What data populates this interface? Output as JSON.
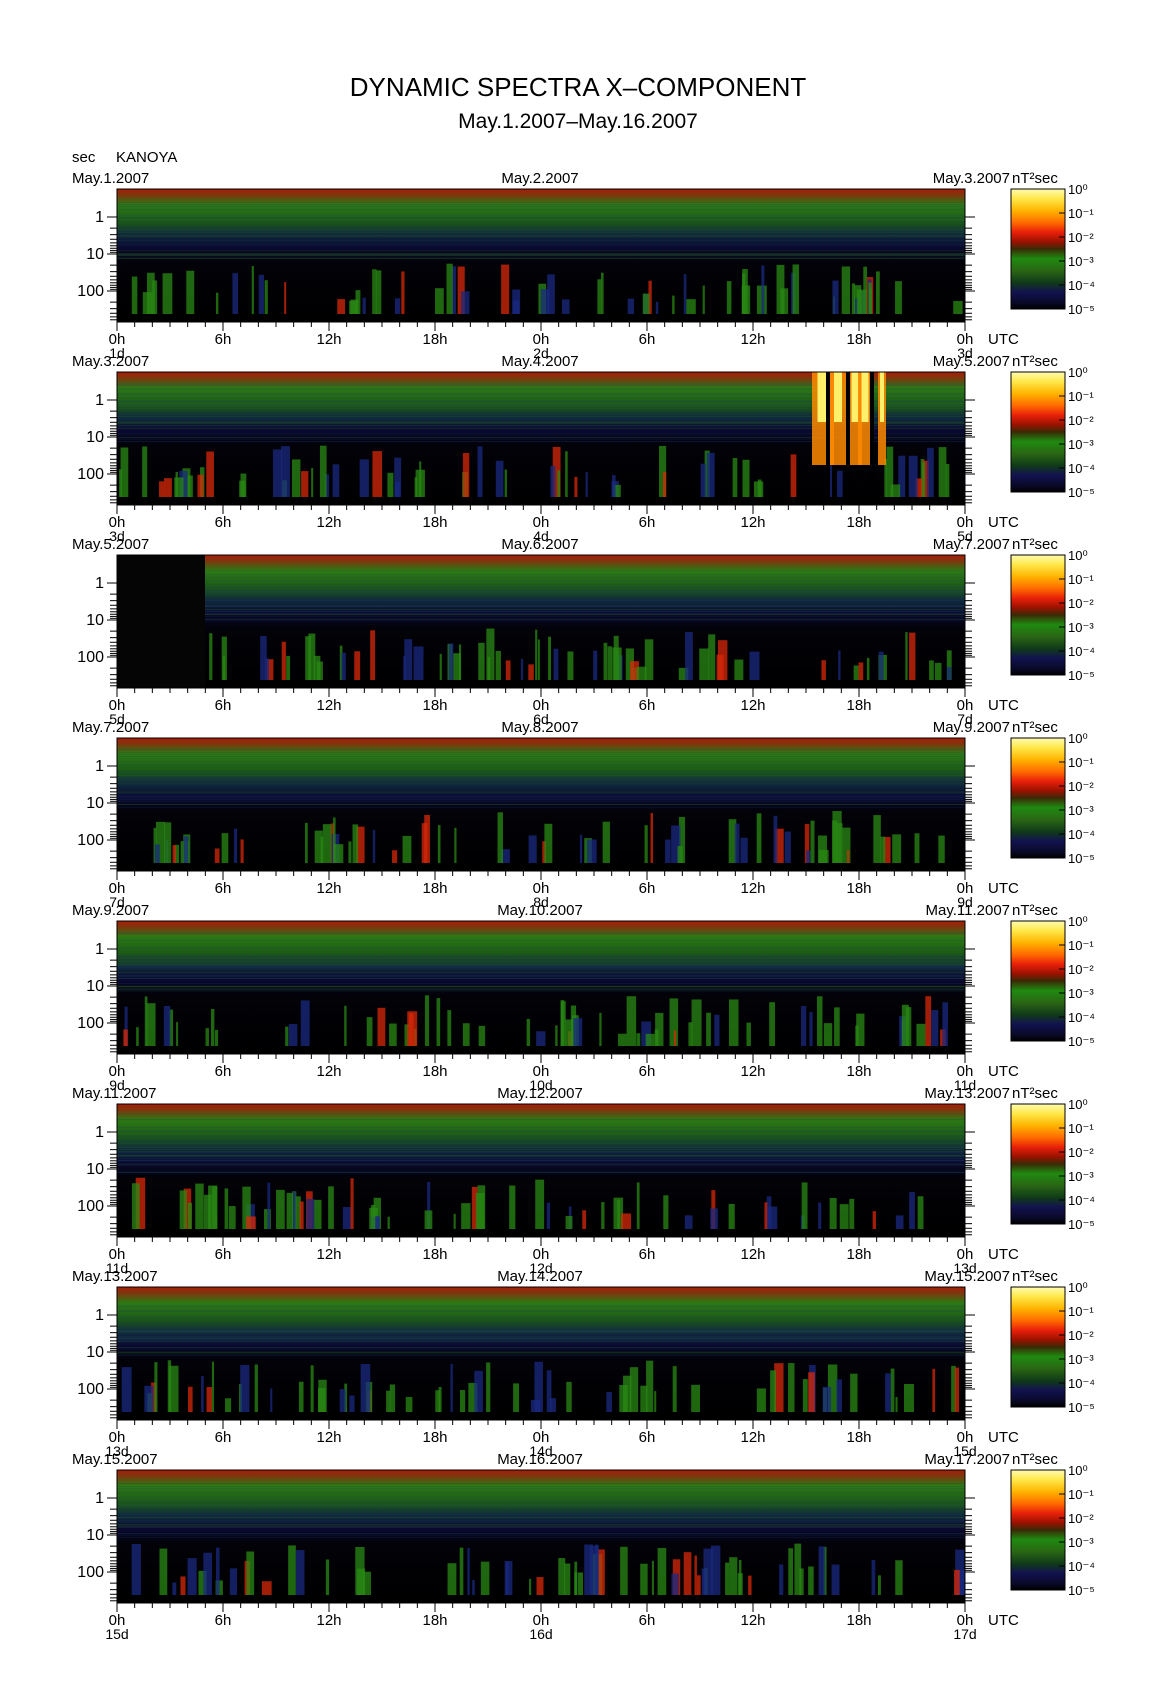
{
  "title": "DYNAMIC SPECTRA X–COMPONENT",
  "subtitle": "May.1.2007–May.16.2007",
  "station": "KANOYA",
  "y_unit": "sec",
  "x_unit": "UTC",
  "colorbar_unit": "nT²sec",
  "chart_data": {
    "type": "heatmap",
    "title": "DYNAMIC SPECTRA X–COMPONENT",
    "subtitle": "May.1.2007–May.16.2007",
    "station": "KANOYA",
    "ylabel": "sec",
    "xlabel": "UTC",
    "y_scale": "log",
    "y_inverted": true,
    "y_tick_labels": [
      "1",
      "10",
      "100"
    ],
    "y_ticks": [
      1,
      10,
      100
    ],
    "x_tick_labels": [
      "0h",
      "6h",
      "12h",
      "18h",
      "0h",
      "6h",
      "12h",
      "18h",
      "0h"
    ],
    "x_ticks_hours": [
      0,
      6,
      12,
      18,
      24,
      30,
      36,
      42,
      48
    ],
    "colorbar": {
      "label": "nT²sec",
      "scale": "log",
      "range": [
        1e-05,
        1
      ],
      "ticks": [
        "10⁰",
        "10⁻¹",
        "10⁻²",
        "10⁻³",
        "10⁻⁴",
        "10⁻⁵"
      ],
      "colors": [
        "#ffff9a",
        "#ffd21e",
        "#ff8c00",
        "#e8200a",
        "#b61400",
        "#5c0a00",
        "#1b8a0c",
        "#2c6612",
        "#0b4a10",
        "#10104a",
        "#08082a",
        "#000000"
      ]
    },
    "panels": [
      {
        "dates": [
          "May.1.2007",
          "May.2.2007",
          "May.3.2007"
        ],
        "day_labels": [
          "1d",
          "2d",
          "3d"
        ]
      },
      {
        "dates": [
          "May.3.2007",
          "May.4.2007",
          "May.5.2007"
        ],
        "day_labels": [
          "3d",
          "4d",
          "5d"
        ]
      },
      {
        "dates": [
          "May.5.2007",
          "May.6.2007",
          "May.7.2007"
        ],
        "day_labels": [
          "5d",
          "6d",
          "7d"
        ]
      },
      {
        "dates": [
          "May.7.2007",
          "May.8.2007",
          "May.9.2007"
        ],
        "day_labels": [
          "7d",
          "8d",
          "9d"
        ]
      },
      {
        "dates": [
          "May.9.2007",
          "May.10.2007",
          "May.11.2007"
        ],
        "day_labels": [
          "9d",
          "10d",
          "11d"
        ]
      },
      {
        "dates": [
          "May.11.2007",
          "May.12.2007",
          "May.13.2007"
        ],
        "day_labels": [
          "11d",
          "12d",
          "13d"
        ]
      },
      {
        "dates": [
          "May.13.2007",
          "May.14.2007",
          "May.15.2007"
        ],
        "day_labels": [
          "13d",
          "14d",
          "15d"
        ]
      },
      {
        "dates": [
          "May.15.2007",
          "May.16.2007",
          "May.17.2007"
        ],
        "day_labels": [
          "15d",
          "16d",
          "17d"
        ]
      }
    ]
  }
}
